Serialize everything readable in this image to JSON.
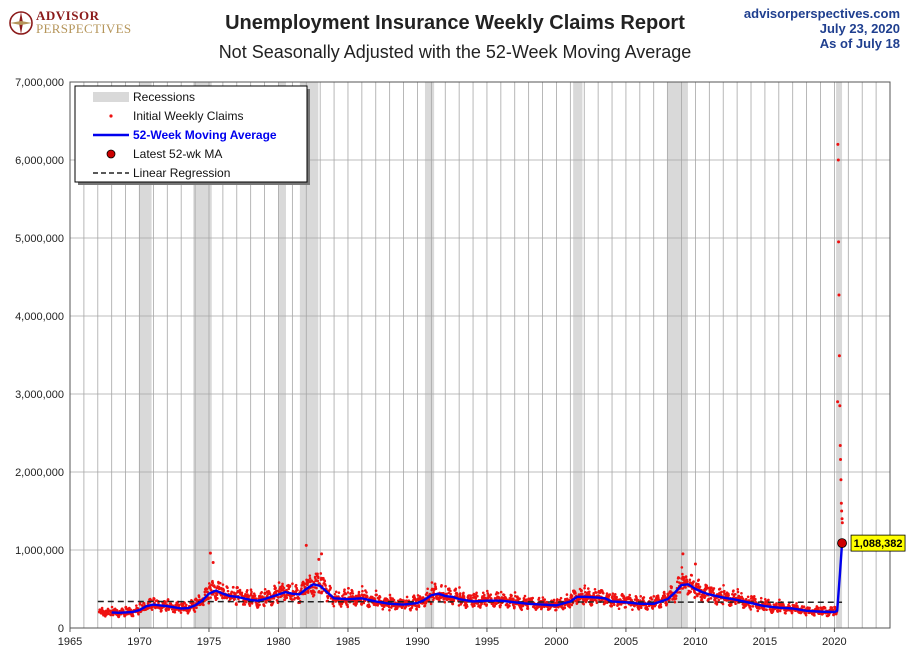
{
  "header": {
    "logo_line1": "ADVISOR",
    "logo_line2": "PERSPECTIVES",
    "site": "advisorperspectives.com",
    "date": "July 23, 2020",
    "as_of": "As of July 18"
  },
  "chart_data": {
    "type": "scatter",
    "title": "Unemployment Insurance Weekly Claims Report",
    "subtitle": "Not Seasonally Adjusted with the 52-Week Moving Average",
    "xlim": [
      1965,
      2024
    ],
    "ylim": [
      0,
      7000000
    ],
    "x_ticks": [
      1965,
      1970,
      1975,
      1980,
      1985,
      1990,
      1995,
      2000,
      2005,
      2010,
      2015,
      2020
    ],
    "y_ticks": [
      0,
      1000000,
      2000000,
      3000000,
      4000000,
      5000000,
      6000000,
      7000000
    ],
    "y_tick_labels": [
      "0",
      "1,000,000",
      "2,000,000",
      "3,000,000",
      "4,000,000",
      "5,000,000",
      "6,000,000",
      "7,000,000"
    ],
    "grid": true,
    "legend_position": "top-left",
    "legend": {
      "recessions": "Recessions",
      "weekly": "Initial Weekly Claims",
      "ma": "52-Week Moving Average",
      "latest": "Latest 52-wk MA",
      "regression": "Linear Regression"
    },
    "colors": {
      "weekly": "#ee1111",
      "ma": "#0000ee",
      "recession": "#d9d9d9",
      "regression": "#222222",
      "latest_fill": "#cc0000",
      "callout_bg": "#ffff00"
    },
    "recessions": [
      [
        1969.95,
        1970.87
      ],
      [
        1973.87,
        1975.2
      ],
      [
        1980.0,
        1980.54
      ],
      [
        1981.54,
        1982.87
      ],
      [
        1990.54,
        1991.2
      ],
      [
        2001.2,
        2001.87
      ],
      [
        2007.95,
        2009.46
      ],
      [
        2020.12,
        2020.55
      ]
    ],
    "moving_average": {
      "x": [
        1968.0,
        1968.5,
        1969.0,
        1969.5,
        1970.0,
        1970.5,
        1971.0,
        1971.5,
        1972.0,
        1972.5,
        1973.0,
        1973.5,
        1974.0,
        1974.5,
        1975.0,
        1975.5,
        1976.0,
        1976.5,
        1977.0,
        1977.5,
        1978.0,
        1978.5,
        1979.0,
        1979.5,
        1980.0,
        1980.5,
        1981.0,
        1981.5,
        1982.0,
        1982.5,
        1983.0,
        1983.5,
        1984.0,
        1985.0,
        1986.0,
        1987.0,
        1988.0,
        1989.0,
        1990.0,
        1990.5,
        1991.0,
        1991.5,
        1992.0,
        1992.5,
        1993.0,
        1994.0,
        1995.0,
        1996.0,
        1997.0,
        1998.0,
        1999.0,
        2000.0,
        2001.0,
        2001.5,
        2002.0,
        2003.0,
        2003.5,
        2004.0,
        2005.0,
        2006.0,
        2007.0,
        2008.0,
        2008.5,
        2009.0,
        2009.5,
        2010.0,
        2010.5,
        2011.0,
        2012.0,
        2013.0,
        2014.0,
        2015.0,
        2016.0,
        2017.0,
        2018.0,
        2019.0,
        2020.0,
        2020.2,
        2020.4,
        2020.55
      ],
      "y": [
        200000,
        195000,
        200000,
        205000,
        230000,
        280000,
        300000,
        290000,
        280000,
        265000,
        250000,
        255000,
        290000,
        350000,
        440000,
        480000,
        440000,
        410000,
        400000,
        380000,
        360000,
        350000,
        370000,
        400000,
        430000,
        460000,
        440000,
        430000,
        500000,
        560000,
        540000,
        460000,
        380000,
        370000,
        380000,
        340000,
        310000,
        300000,
        320000,
        360000,
        420000,
        440000,
        410000,
        400000,
        370000,
        340000,
        350000,
        350000,
        330000,
        310000,
        300000,
        290000,
        340000,
        400000,
        400000,
        390000,
        380000,
        340000,
        330000,
        310000,
        310000,
        370000,
        450000,
        550000,
        560000,
        500000,
        460000,
        430000,
        390000,
        360000,
        320000,
        280000,
        260000,
        250000,
        220000,
        210000,
        205000,
        220000,
        700000,
        1088382
      ]
    },
    "latest_ma": {
      "x": 2020.55,
      "value": 1088382,
      "label": "1,088,382"
    },
    "regression": {
      "x": [
        1967.0,
        2020.55
      ],
      "y": [
        340000,
        330000
      ]
    },
    "weekly_spikes": {
      "x": [
        1975.1,
        1975.3,
        1982.0,
        1982.9,
        1983.1,
        2009.1,
        2010.0,
        2020.23,
        2020.25,
        2020.28,
        2020.3,
        2020.33,
        2020.36,
        2020.39,
        2020.42,
        2020.44,
        2020.47,
        2020.5,
        2020.52,
        2020.55,
        2020.57
      ],
      "y": [
        960000,
        840000,
        1060000,
        880000,
        950000,
        950000,
        820000,
        2900000,
        6200000,
        6000000,
        4950000,
        4270000,
        3490000,
        2850000,
        2340000,
        2160000,
        1900000,
        1600000,
        1500000,
        1400000,
        1350000
      ]
    }
  }
}
